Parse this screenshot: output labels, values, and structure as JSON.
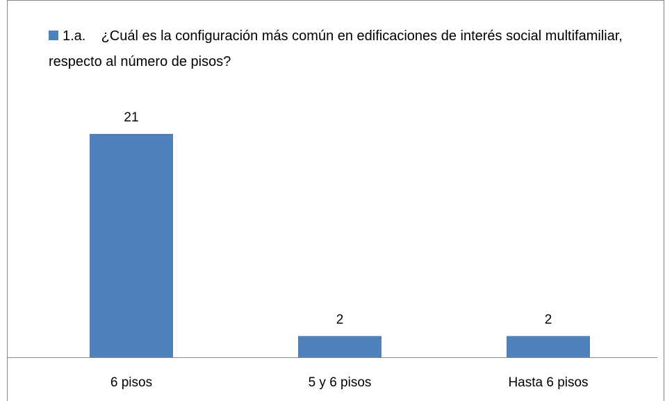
{
  "chart_data": {
    "type": "bar",
    "series": [
      {
        "name": "1.a.    ¿Cuál es la configuración más común en edificaciones de interés social multifamiliar, respecto al número de pisos?",
        "color": "#4f81bd",
        "values": [
          21,
          2,
          2
        ]
      }
    ],
    "categories": [
      "6 pisos",
      "5 y 6 pisos",
      "Hasta 6 pisos"
    ]
  }
}
